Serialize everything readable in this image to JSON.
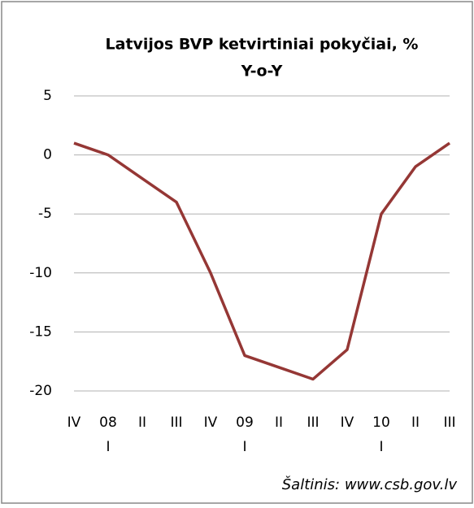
{
  "chart_data": {
    "type": "line",
    "title": "Latvijos BVP ketvirtiniai pokyčiai, %",
    "subtitle": "Y-o-Y",
    "source": "Šaltinis: www.csb.gov.lv",
    "categories": [
      "IV",
      "08 I",
      "II",
      "III",
      "IV",
      "09 I",
      "II",
      "III",
      "IV",
      "10 I",
      "II",
      "III"
    ],
    "series": [
      {
        "name": "BVP",
        "color": "#953735",
        "values": [
          1,
          0,
          -2,
          -4,
          -10,
          -17,
          -18,
          -19,
          -16.5,
          -5,
          -1,
          1
        ]
      }
    ],
    "ylim": [
      -20,
      5
    ],
    "yticks": [
      -20,
      -15,
      -10,
      -5,
      0,
      5
    ],
    "grid": true
  }
}
